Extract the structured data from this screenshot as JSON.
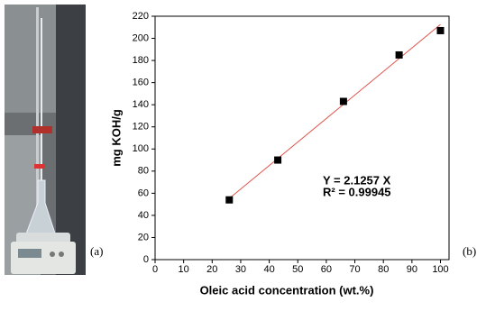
{
  "panel_labels": [
    "(a)",
    "(b)"
  ],
  "chart_data": {
    "type": "scatter",
    "x_label": "Oleic acid concentration (wt.%)",
    "y_label": "mg KOH/g",
    "annotations": [
      "Y = 2.1257 X",
      "R² = 0.99945"
    ],
    "series": [
      {
        "color": "#000000",
        "x": [
          26,
          43,
          66,
          85.5,
          100
        ],
        "values": [
          54,
          90,
          143,
          185,
          207
        ]
      }
    ],
    "fit": {
      "slope": 2.1257,
      "x": [
        25,
        100
      ],
      "color": "#e0524a"
    },
    "xlim": [
      0,
      103
    ],
    "xticks": [
      0,
      10,
      20,
      30,
      40,
      50,
      60,
      70,
      80,
      90,
      100
    ],
    "ylim": [
      0,
      220
    ],
    "yticks": [
      0,
      20,
      40,
      60,
      80,
      100,
      120,
      140,
      160,
      180,
      200,
      220
    ]
  }
}
